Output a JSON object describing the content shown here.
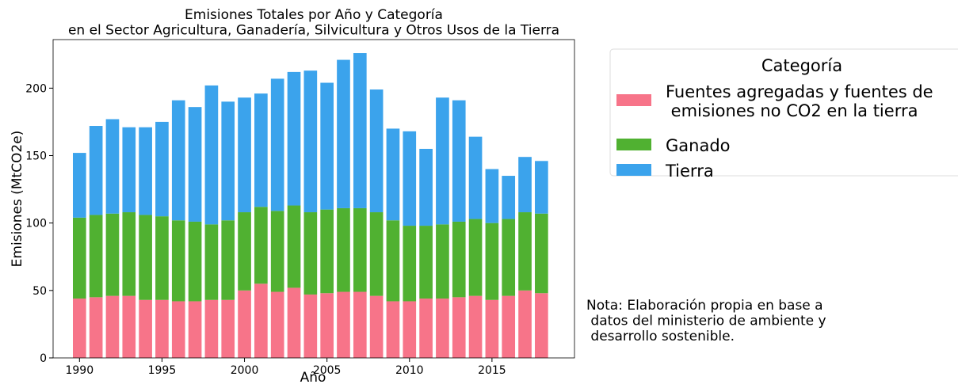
{
  "chart_data": {
    "type": "stacked_bar",
    "title": "Emisiones Totales por Año y Categoría\nen el Sector Agricultura, Ganadería, Silvicultura y Otros Usos de la Tierra",
    "x_label": "Año",
    "y_label": "Emisiones (MtCO2e)",
    "x": [
      1990,
      1991,
      1992,
      1993,
      1994,
      1995,
      1996,
      1997,
      1998,
      1999,
      2000,
      2001,
      2002,
      2003,
      2004,
      2005,
      2006,
      2007,
      2008,
      2009,
      2010,
      2011,
      2012,
      2013,
      2014,
      2015,
      2016,
      2017,
      2018
    ],
    "series": [
      {
        "name": "Fuentes agregadas y fuentes de\n emisiones no CO2 en la tierra",
        "color": "#f77489",
        "values": [
          44,
          45,
          46,
          46,
          43,
          43,
          42,
          42,
          43,
          43,
          50,
          55,
          49,
          52,
          47,
          48,
          49,
          49,
          46,
          42,
          42,
          44,
          44,
          45,
          46,
          43,
          46,
          50,
          48
        ]
      },
      {
        "name": "Ganado",
        "color": "#50b131",
        "values": [
          60,
          61,
          61,
          62,
          63,
          62,
          60,
          59,
          56,
          59,
          58,
          57,
          60,
          61,
          61,
          62,
          62,
          62,
          62,
          60,
          56,
          54,
          55,
          56,
          57,
          57,
          57,
          58,
          59
        ]
      },
      {
        "name": "Tierra",
        "color": "#3ba3ec",
        "values": [
          48,
          66,
          70,
          63,
          65,
          70,
          89,
          85,
          103,
          88,
          85,
          84,
          98,
          99,
          105,
          94,
          110,
          115,
          91,
          68,
          70,
          57,
          94,
          90,
          61,
          40,
          32,
          41,
          39
        ]
      }
    ],
    "legend_title": "Categoría",
    "note": "Nota: Elaboración propia en base a\n datos del ministerio de ambiente y\n desarrollo sostenible.",
    "xlim": [
      1988.4,
      2020
    ],
    "xticks": [
      1990,
      1995,
      2000,
      2005,
      2010,
      2015
    ],
    "ylim": [
      0,
      236
    ],
    "yticks": [
      0,
      50,
      100,
      150,
      200
    ]
  }
}
